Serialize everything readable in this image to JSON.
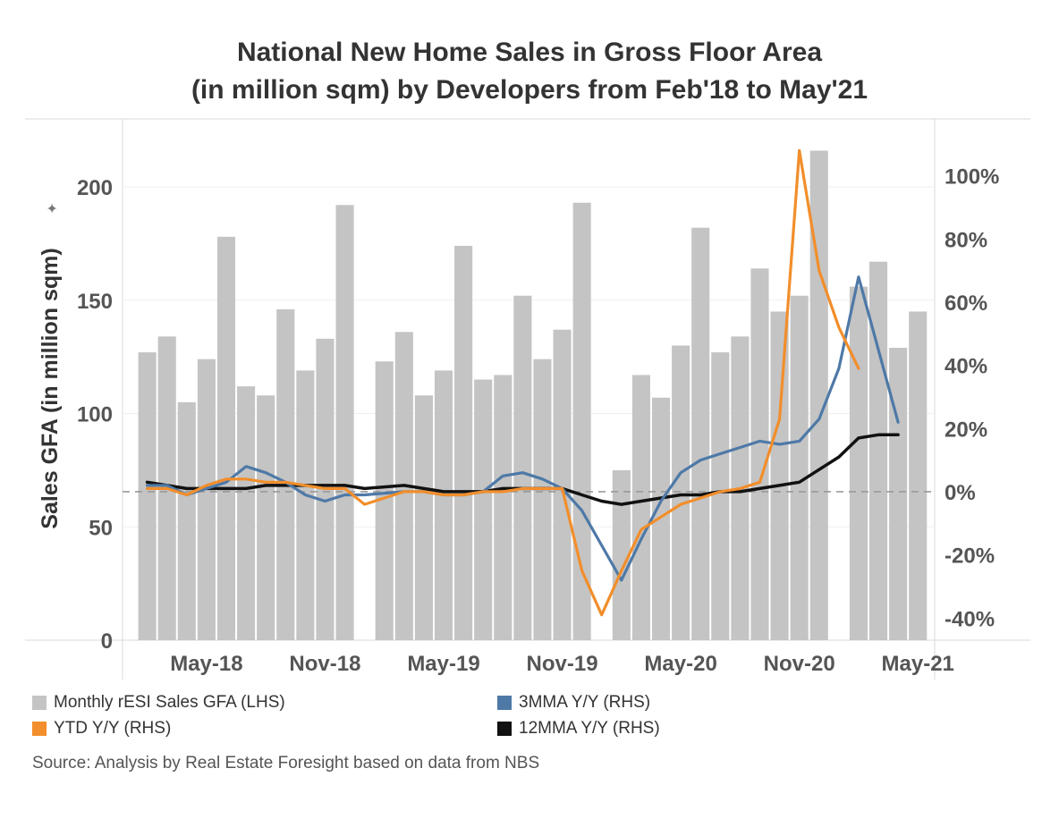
{
  "chart_data": {
    "type": "bar",
    "title": "National New Home Sales in Gross Floor Area",
    "subtitle": "(in million sqm) by Developers from Feb'18 to May'21",
    "ylabel": "Sales GFA (in million sqm)",
    "ylabel_marker": "✦",
    "ylim": [
      0,
      230
    ],
    "y2lim": [
      -47,
      118
    ],
    "yticks": [
      0,
      50,
      100,
      150,
      200
    ],
    "y2ticks": [
      {
        "value": -40,
        "label": "-40%"
      },
      {
        "value": -20,
        "label": "-20%"
      },
      {
        "value": 0,
        "label": "0%"
      },
      {
        "value": 20,
        "label": "20%"
      },
      {
        "value": 40,
        "label": "40%"
      },
      {
        "value": 60,
        "label": "60%"
      },
      {
        "value": 80,
        "label": "80%"
      },
      {
        "value": 100,
        "label": "100%"
      }
    ],
    "xticks": [
      "May-18",
      "Nov-18",
      "May-19",
      "Nov-19",
      "May-20",
      "Nov-20",
      "May-21"
    ],
    "xtick_months": [
      "2018-05",
      "2018-11",
      "2019-05",
      "2019-11",
      "2020-05",
      "2020-11",
      "2021-05"
    ],
    "months": [
      "2018-02",
      "2018-03",
      "2018-04",
      "2018-05",
      "2018-06",
      "2018-07",
      "2018-08",
      "2018-09",
      "2018-10",
      "2018-11",
      "2018-12",
      "2019-01",
      "2019-02",
      "2019-03",
      "2019-04",
      "2019-05",
      "2019-06",
      "2019-07",
      "2019-08",
      "2019-09",
      "2019-10",
      "2019-11",
      "2019-12",
      "2020-01",
      "2020-02",
      "2020-03",
      "2020-04",
      "2020-05",
      "2020-06",
      "2020-07",
      "2020-08",
      "2020-09",
      "2020-10",
      "2020-11",
      "2020-12",
      "2021-01",
      "2021-02",
      "2021-03",
      "2021-04",
      "2021-05"
    ],
    "series": [
      {
        "name": "Monthly rESI Sales GFA (LHS)",
        "axis": "left",
        "type": "bar",
        "color": "#c4c4c4",
        "values": [
          127,
          134,
          105,
          124,
          178,
          112,
          108,
          146,
          119,
          133,
          192,
          null,
          123,
          136,
          108,
          119,
          174,
          115,
          117,
          152,
          124,
          137,
          193,
          null,
          75,
          117,
          107,
          130,
          182,
          127,
          134,
          164,
          145,
          152,
          216,
          null,
          156,
          167,
          129,
          145
        ]
      },
      {
        "name": "3MMA Y/Y (RHS)",
        "axis": "right",
        "type": "line",
        "color": "#4e79a7",
        "values": [
          2,
          2,
          -1,
          1,
          3,
          8,
          6,
          3,
          -1,
          -3,
          -1,
          -1,
          null,
          0,
          0,
          -1,
          -1,
          0,
          5,
          6,
          4,
          1,
          -6,
          -17,
          -28,
          -15,
          -3,
          6,
          10,
          12,
          14,
          16,
          15,
          16,
          23,
          39,
          68,
          45,
          22,
          null
        ]
      },
      {
        "name": "YTD Y/Y (RHS)",
        "axis": "right",
        "type": "line",
        "color": "#f28e2b",
        "values": [
          1,
          1,
          -1,
          2,
          4,
          4,
          3,
          3,
          2,
          1,
          1,
          -4,
          null,
          0,
          0,
          -1,
          -1,
          0,
          0,
          1,
          1,
          1,
          -25,
          -39,
          -25,
          -12,
          -8,
          -4,
          -2,
          0,
          1,
          3,
          23,
          108,
          70,
          52,
          39,
          null,
          null,
          null
        ]
      },
      {
        "name": "12MMA Y/Y (RHS)",
        "axis": "right",
        "type": "line",
        "color": "#111111",
        "values": [
          3,
          2,
          1,
          1,
          1,
          1,
          2,
          2,
          2,
          2,
          2,
          1,
          null,
          2,
          1,
          0,
          0,
          0,
          1,
          1,
          1,
          1,
          -1,
          -3,
          -4,
          -3,
          -2,
          -1,
          -1,
          0,
          0,
          1,
          2,
          3,
          7,
          11,
          17,
          18,
          18,
          null
        ]
      }
    ],
    "legend": [
      {
        "label": "Monthly rESI Sales GFA (LHS)",
        "color": "#c4c4c4"
      },
      {
        "label": "3MMA Y/Y (RHS)",
        "color": "#4e79a7"
      },
      {
        "label": "YTD Y/Y (RHS)",
        "color": "#f28e2b"
      },
      {
        "label": "12MMA Y/Y (RHS)",
        "color": "#111111"
      }
    ],
    "legend_position": "bottom-left",
    "reference_line": {
      "axis": "right",
      "value": 0,
      "style": "dashed",
      "color": "#999999"
    },
    "source": "Source: Analysis by Real Estate Foresight based on data from NBS"
  }
}
